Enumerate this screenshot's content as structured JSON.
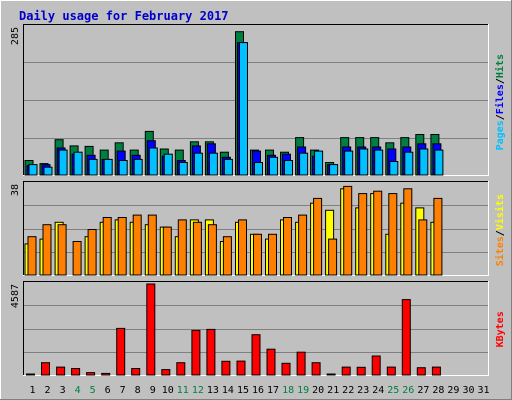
{
  "chart_data": {
    "type": "bar",
    "title": "Daily usage for February 2017",
    "days": [
      "1",
      "2",
      "3",
      "4",
      "5",
      "6",
      "7",
      "8",
      "9",
      "10",
      "11",
      "12",
      "13",
      "14",
      "15",
      "16",
      "17",
      "18",
      "19",
      "20",
      "21",
      "22",
      "23",
      "24",
      "25",
      "26",
      "27",
      "28",
      "29",
      "30",
      "31"
    ],
    "weekend_days": [
      "4",
      "5",
      "11",
      "12",
      "18",
      "19",
      "25",
      "26"
    ],
    "active_days": 28,
    "panels": [
      {
        "id": "hits",
        "ymax_label": "285",
        "ymax": 285,
        "axis_label": [
          "Pages",
          "/",
          "Files",
          "/",
          "Hits"
        ],
        "axis_label_colors": [
          "#00c0ff",
          "#000000",
          "#0000ff",
          "#000000",
          "#008040"
        ],
        "series": [
          {
            "name": "Hits",
            "color": "#008040",
            "values": [
              28,
              22,
              68,
              56,
              55,
              48,
              62,
              48,
              84,
              50,
              48,
              64,
              64,
              44,
              276,
              48,
              48,
              44,
              72,
              48,
              24,
              72,
              72,
              72,
              62,
              72,
              78,
              78
            ]
          },
          {
            "name": "Files",
            "color": "#0000ff",
            "values": [
              18,
              20,
              52,
              40,
              38,
              30,
              46,
              38,
              66,
              36,
              28,
              56,
              60,
              34,
              255,
              46,
              38,
              40,
              54,
              36,
              20,
              54,
              54,
              54,
              50,
              54,
              60,
              60
            ]
          },
          {
            "name": "Pages",
            "color": "#00c0ff",
            "values": [
              20,
              15,
              48,
              44,
              30,
              30,
              28,
              30,
              52,
              40,
              24,
              42,
              42,
              30,
              255,
              24,
              34,
              28,
              42,
              46,
              20,
              46,
              50,
              48,
              26,
              44,
              50,
              48
            ]
          }
        ]
      },
      {
        "id": "visits",
        "ymax_label": "38",
        "ymax": 38,
        "axis_label": [
          "Sites",
          "/",
          "Visits"
        ],
        "axis_label_colors": [
          "#ff8000",
          "#000000",
          "#ffff00"
        ],
        "series": [
          {
            "name": "Visits",
            "color": "#ffff00",
            "values": [
              13,
              15,
              22,
              0,
              16,
              22,
              23,
              22,
              21,
              20,
              16,
              23,
              23,
              14,
              22,
              17,
              15,
              23,
              22,
              30,
              27,
              36,
              28,
              34,
              17,
              30,
              28,
              22
            ]
          },
          {
            "name": "Sites",
            "color": "#ff8000",
            "values": [
              16,
              21,
              21,
              14,
              19,
              24,
              24,
              25,
              25,
              20,
              23,
              22,
              21,
              16,
              23,
              17,
              17,
              24,
              25,
              32,
              15,
              37,
              34,
              35,
              34,
              36,
              23,
              32
            ]
          }
        ]
      },
      {
        "id": "kbytes",
        "ymax_label": "4587",
        "ymax": 4587,
        "axis_label": [
          "KBytes"
        ],
        "axis_label_colors": [
          "#ff0000"
        ],
        "series": [
          {
            "name": "KBytes",
            "color": "#ff0000",
            "values": [
              30,
              620,
              400,
              330,
              120,
              80,
              2350,
              330,
              4587,
              270,
              620,
              2250,
              2300,
              690,
              700,
              2030,
              1300,
              590,
              1150,
              620,
              40,
              400,
              390,
              960,
              400,
              3800,
              370,
              400
            ]
          }
        ]
      }
    ]
  }
}
